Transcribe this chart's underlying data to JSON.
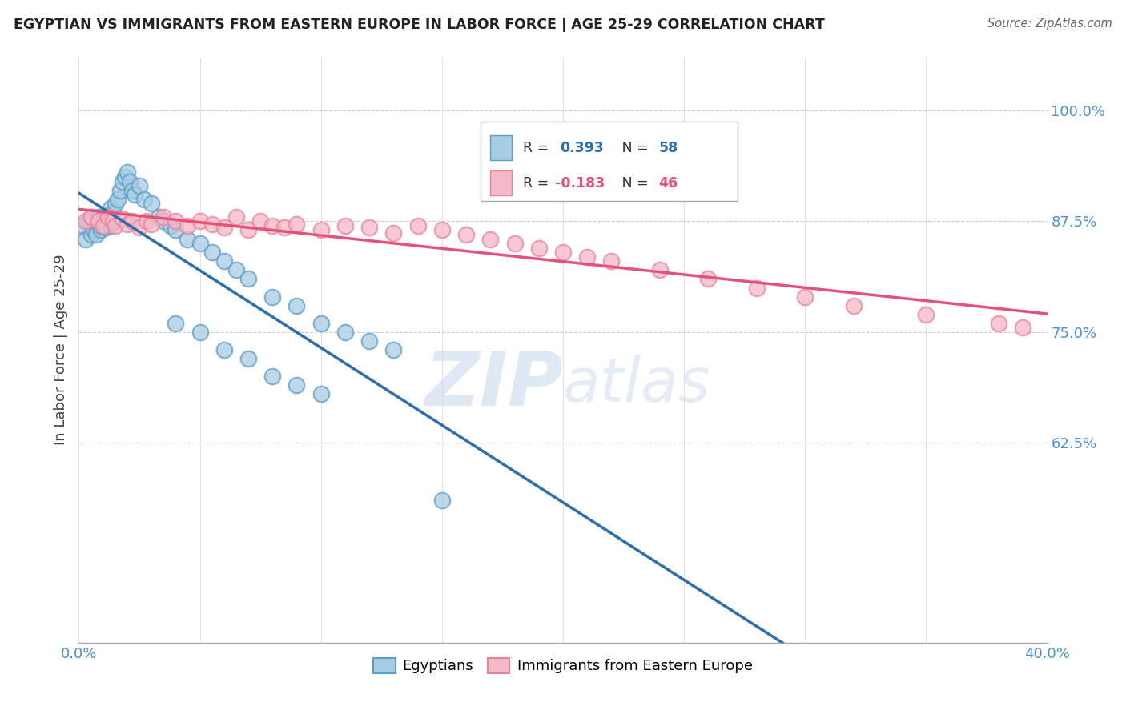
{
  "title": "EGYPTIAN VS IMMIGRANTS FROM EASTERN EUROPE IN LABOR FORCE | AGE 25-29 CORRELATION CHART",
  "source": "Source: ZipAtlas.com",
  "ylabel": "In Labor Force | Age 25-29",
  "xlim": [
    0.0,
    0.4
  ],
  "ylim": [
    0.4,
    1.06
  ],
  "ytick_labels": [
    "100.0%",
    "87.5%",
    "75.0%",
    "62.5%"
  ],
  "ytick_vals": [
    1.0,
    0.875,
    0.75,
    0.625
  ],
  "watermark": "ZIPatlas",
  "blue_color": "#a8cce4",
  "pink_color": "#f4b8c8",
  "blue_edge_color": "#5b9dc9",
  "pink_edge_color": "#e8849a",
  "blue_line_color": "#2c6fad",
  "pink_line_color": "#e8507a",
  "axis_label_color": "#4a90d9",
  "background_color": "#ffffff",
  "grid_color": "#cccccc",
  "blue_scatter_x": [
    0.002,
    0.003,
    0.004,
    0.005,
    0.005,
    0.006,
    0.006,
    0.007,
    0.007,
    0.008,
    0.008,
    0.009,
    0.009,
    0.01,
    0.01,
    0.011,
    0.011,
    0.012,
    0.012,
    0.013,
    0.013,
    0.014,
    0.015,
    0.016,
    0.017,
    0.018,
    0.019,
    0.02,
    0.021,
    0.022,
    0.023,
    0.025,
    0.027,
    0.03,
    0.033,
    0.035,
    0.038,
    0.04,
    0.045,
    0.05,
    0.055,
    0.06,
    0.065,
    0.07,
    0.08,
    0.09,
    0.1,
    0.11,
    0.12,
    0.13,
    0.04,
    0.05,
    0.06,
    0.07,
    0.08,
    0.09,
    0.1,
    0.15
  ],
  "blue_scatter_y": [
    0.87,
    0.855,
    0.875,
    0.86,
    0.88,
    0.865,
    0.875,
    0.87,
    0.86,
    0.875,
    0.88,
    0.865,
    0.87,
    0.875,
    0.88,
    0.872,
    0.868,
    0.882,
    0.876,
    0.87,
    0.89,
    0.885,
    0.895,
    0.9,
    0.91,
    0.92,
    0.925,
    0.93,
    0.92,
    0.91,
    0.905,
    0.915,
    0.9,
    0.895,
    0.88,
    0.875,
    0.87,
    0.865,
    0.855,
    0.85,
    0.84,
    0.83,
    0.82,
    0.81,
    0.79,
    0.78,
    0.76,
    0.75,
    0.74,
    0.73,
    0.76,
    0.75,
    0.73,
    0.72,
    0.7,
    0.69,
    0.68,
    0.56
  ],
  "pink_scatter_x": [
    0.003,
    0.005,
    0.008,
    0.01,
    0.012,
    0.014,
    0.015,
    0.018,
    0.02,
    0.022,
    0.025,
    0.028,
    0.03,
    0.035,
    0.04,
    0.045,
    0.05,
    0.055,
    0.06,
    0.065,
    0.07,
    0.075,
    0.08,
    0.085,
    0.09,
    0.1,
    0.11,
    0.12,
    0.13,
    0.14,
    0.15,
    0.16,
    0.17,
    0.18,
    0.19,
    0.2,
    0.21,
    0.22,
    0.24,
    0.26,
    0.28,
    0.3,
    0.32,
    0.35,
    0.38,
    0.39
  ],
  "pink_scatter_y": [
    0.875,
    0.88,
    0.875,
    0.87,
    0.88,
    0.875,
    0.87,
    0.878,
    0.872,
    0.875,
    0.868,
    0.875,
    0.872,
    0.88,
    0.875,
    0.87,
    0.875,
    0.872,
    0.868,
    0.88,
    0.865,
    0.875,
    0.87,
    0.868,
    0.872,
    0.865,
    0.87,
    0.868,
    0.862,
    0.87,
    0.865,
    0.86,
    0.855,
    0.85,
    0.845,
    0.84,
    0.835,
    0.83,
    0.82,
    0.81,
    0.8,
    0.79,
    0.78,
    0.77,
    0.76,
    0.755
  ]
}
